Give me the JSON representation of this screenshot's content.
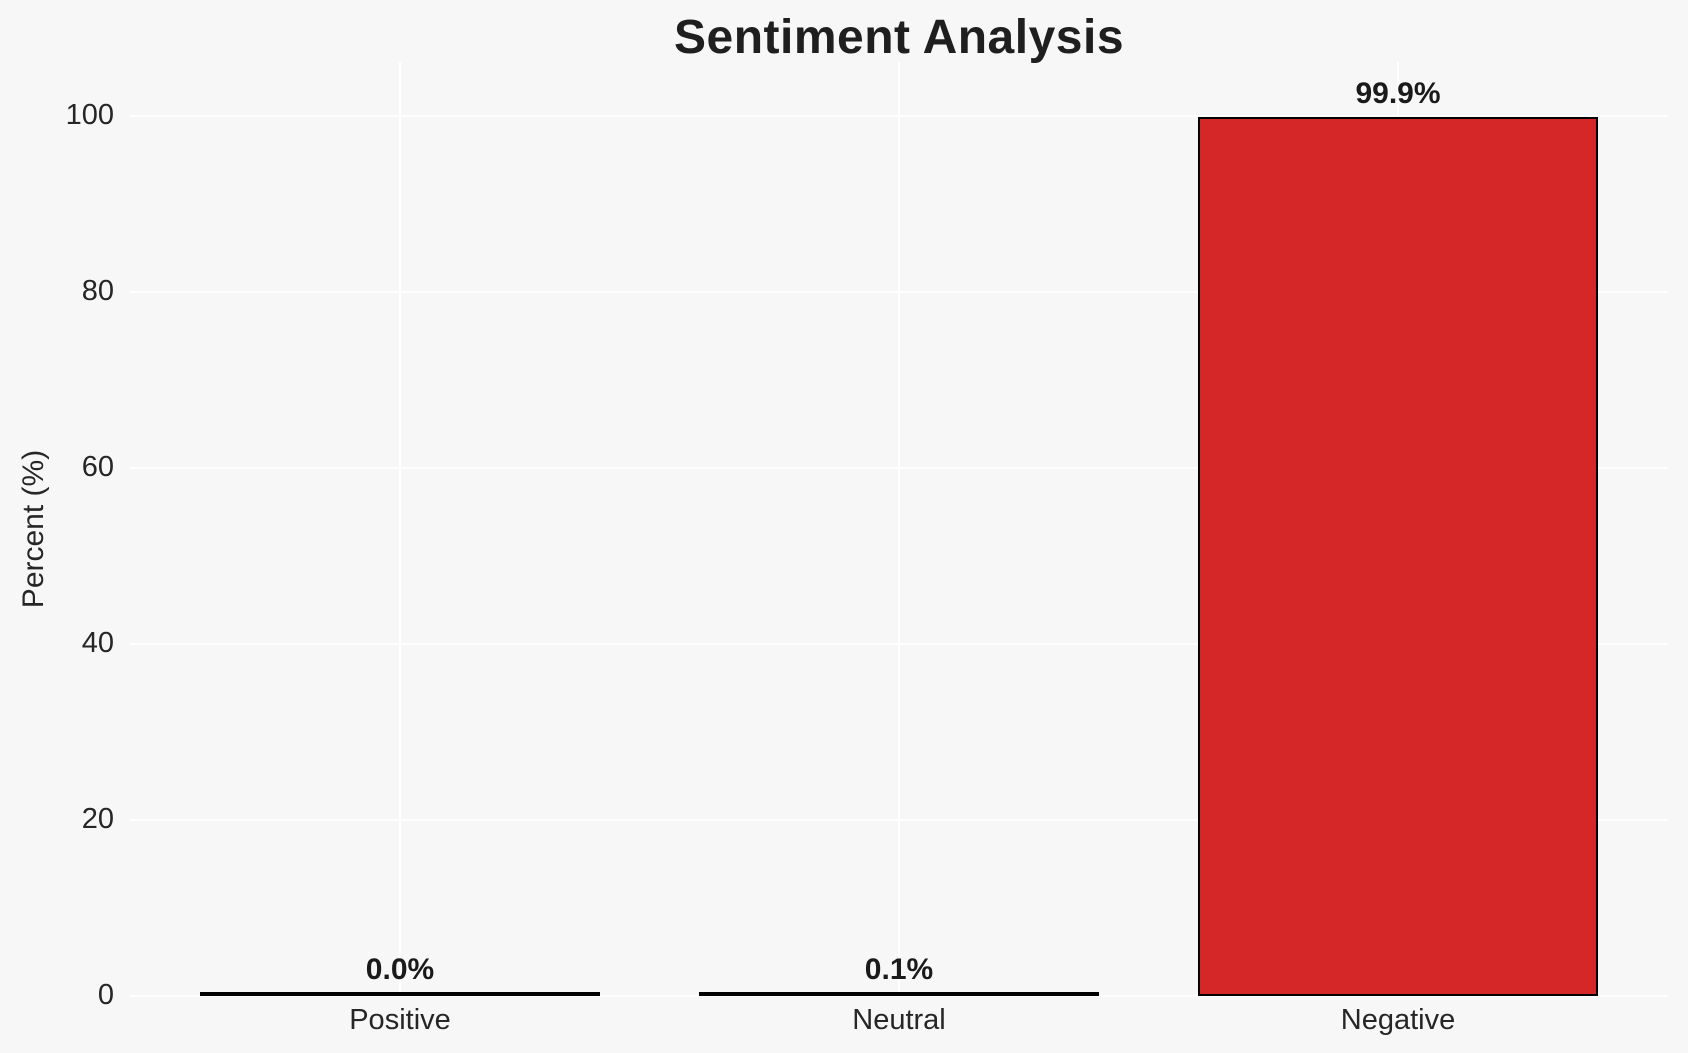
{
  "chart_data": {
    "type": "bar",
    "title": "Sentiment Analysis",
    "ylabel": "Percent (%)",
    "categories": [
      "Positive",
      "Neutral",
      "Negative"
    ],
    "values": [
      0.0,
      0.1,
      99.9
    ],
    "value_labels": [
      "0.0%",
      "0.1%",
      "99.9%"
    ],
    "yticks": [
      0,
      20,
      40,
      60,
      80,
      100
    ],
    "ylim": [
      0,
      106
    ],
    "grid": true,
    "legend": false,
    "colors": {
      "bar_fill": "#d62728",
      "bar_edge": "#000000",
      "background": "#f7f7f7",
      "gridline": "#ffffff",
      "title_text": "#1f1f1f",
      "tick_text": "#262626",
      "value_label_text": "#1a1a1a"
    }
  }
}
